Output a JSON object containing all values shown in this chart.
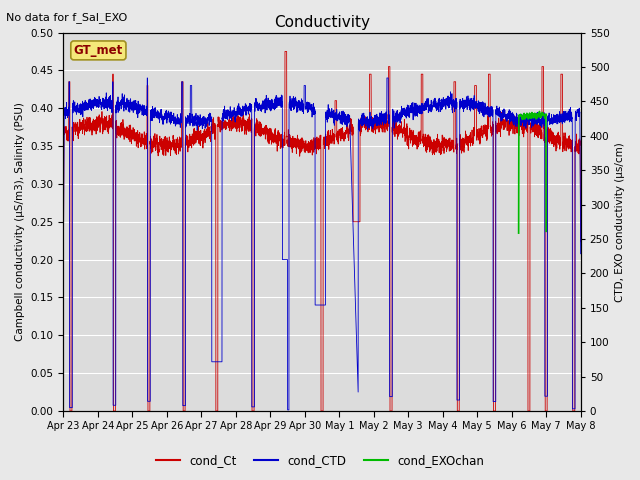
{
  "title": "Conductivity",
  "top_left_text": "No data for f_Sal_EXO",
  "box_label": "GT_met",
  "ylabel_left": "Campbell conductivity (μS/m3), Salinity (PSU)",
  "ylabel_right": "CTD, EXO conductivity (μs/cm)",
  "ylim_left": [
    0.0,
    0.5
  ],
  "ylim_right": [
    0,
    550
  ],
  "yticks_left": [
    0.0,
    0.05,
    0.1,
    0.15,
    0.2,
    0.25,
    0.3,
    0.35,
    0.4,
    0.45,
    0.5
  ],
  "yticks_right": [
    0,
    50,
    100,
    150,
    200,
    250,
    300,
    350,
    400,
    450,
    500,
    550
  ],
  "xtick_labels": [
    "Apr 23",
    "Apr 24",
    "Apr 25",
    "Apr 26",
    "Apr 27",
    "Apr 28",
    "Apr 29",
    "Apr 30",
    "May 1",
    "May 2",
    "May 3",
    "May 4",
    "May 5",
    "May 6",
    "May 7",
    "May 8"
  ],
  "n_days": 15,
  "fig_bg_color": "#e8e8e8",
  "plot_bg_color": "#dcdcdc",
  "grid_color": "#c8c8c8",
  "line_colors": {
    "cond_Ct": "#cc0000",
    "cond_CTD": "#0000cc",
    "cond_EXOchan": "#00bb00"
  },
  "legend_entries": [
    "cond_Ct",
    "cond_CTD",
    "cond_EXOchan"
  ]
}
